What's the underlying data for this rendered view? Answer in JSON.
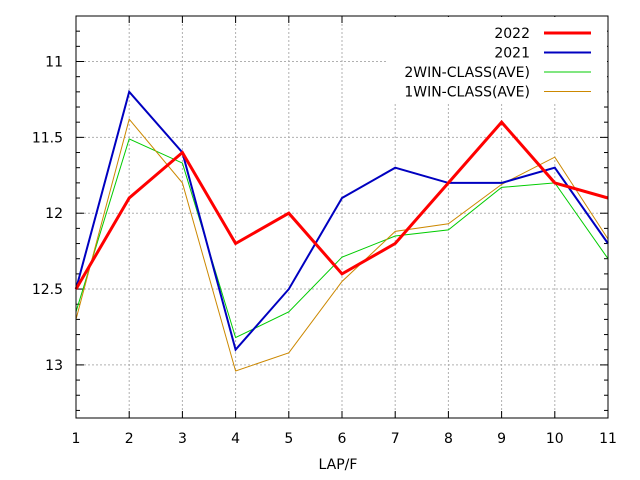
{
  "chart_data": {
    "type": "line",
    "title": "",
    "xlabel": "LAP/F",
    "ylabel": "",
    "x": [
      1,
      2,
      3,
      4,
      5,
      6,
      7,
      8,
      9,
      10,
      11
    ],
    "xlim": [
      1,
      11
    ],
    "ylim": [
      13.35,
      10.7
    ],
    "y_inverted": true,
    "x_ticks": [
      "1",
      "2",
      "3",
      "4",
      "5",
      "6",
      "7",
      "8",
      "9",
      "10",
      "11"
    ],
    "y_ticks": [
      11,
      11.5,
      12,
      12.5,
      13
    ],
    "y_tick_labels": [
      "11",
      "11.5",
      "12",
      "12.5",
      "13"
    ],
    "y_minor_step": 0.1,
    "grid": true,
    "legend_position": "top-right",
    "series": [
      {
        "name": "2022",
        "color": "#ff0000",
        "width": "thick",
        "values": [
          12.5,
          11.9,
          11.6,
          12.2,
          12.0,
          12.4,
          12.2,
          11.8,
          11.4,
          11.8,
          11.9
        ]
      },
      {
        "name": "2021",
        "color": "#0000c0",
        "width": "medium",
        "values": [
          12.5,
          11.2,
          11.6,
          12.9,
          12.5,
          11.9,
          11.7,
          11.8,
          11.8,
          11.7,
          12.2
        ]
      },
      {
        "name": "2WIN-CLASS(AVE)",
        "color": "#00cc00",
        "width": "thin",
        "values": [
          12.65,
          11.51,
          11.67,
          12.82,
          12.65,
          12.29,
          12.15,
          12.11,
          11.83,
          11.8,
          12.3
        ]
      },
      {
        "name": "1WIN-CLASS(AVE)",
        "color": "#cc8800",
        "width": "thin",
        "values": [
          12.7,
          11.38,
          11.8,
          13.04,
          12.92,
          12.45,
          12.12,
          12.07,
          11.81,
          11.63,
          12.17
        ]
      }
    ]
  }
}
